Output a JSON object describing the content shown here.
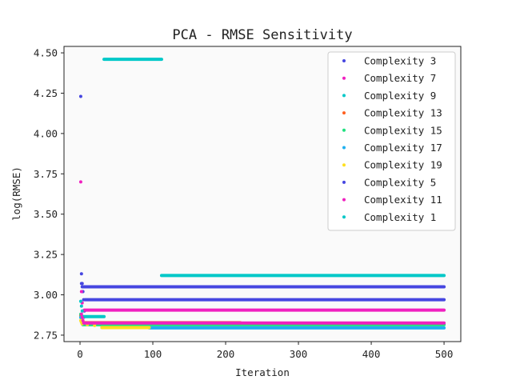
{
  "chart_data": {
    "type": "scatter",
    "title": "PCA - RMSE Sensitivity",
    "xlabel": "Iteration",
    "ylabel": "log(RMSE)",
    "xlim": [
      -22,
      523
    ],
    "ylim": [
      2.71,
      4.54
    ],
    "xticks": [
      0,
      100,
      200,
      300,
      400,
      500
    ],
    "yticks": [
      2.75,
      3.0,
      3.25,
      3.5,
      3.75,
      4.0,
      4.25,
      4.5
    ],
    "ytick_labels": [
      "2.75",
      "3.00",
      "3.25",
      "3.50",
      "3.75",
      "4.00",
      "4.25",
      "4.50"
    ],
    "grid": false,
    "legend_position": "top-right",
    "series": [
      {
        "name": "Complexity 3",
        "color": "#4646e0",
        "points": [
          [
            1,
            4.23
          ],
          [
            2,
            3.13
          ],
          [
            3,
            3.07
          ],
          [
            4,
            3.02
          ],
          [
            5,
            2.97
          ],
          [
            6,
            2.9
          ]
        ],
        "plateau": {
          "from": 7,
          "to": 500,
          "y": 2.97
        }
      },
      {
        "name": "Complexity 7",
        "color": "#f020c0",
        "points": [
          [
            1,
            3.7
          ],
          [
            2,
            3.02
          ],
          [
            3,
            2.95
          ],
          [
            4,
            2.9
          ],
          [
            5,
            2.86
          ]
        ],
        "plateau": {
          "from": 6,
          "to": 500,
          "y": 2.905
        }
      },
      {
        "name": "Complexity 9",
        "color": "#00c8c8",
        "points": [
          [
            1,
            2.96
          ],
          [
            2,
            2.93
          ],
          [
            3,
            2.9
          ]
        ],
        "plateau": {
          "from": 4,
          "to": 33,
          "y": 2.865
        }
      },
      {
        "name": "Complexity 13",
        "color": "#ff6020",
        "points": [
          [
            1,
            2.87
          ],
          [
            2,
            2.85
          ],
          [
            3,
            2.84
          ]
        ],
        "plateau": {
          "from": 4,
          "to": 220,
          "y": 2.827
        }
      },
      {
        "name": "Complexity 15",
        "color": "#20e080",
        "points": [
          [
            1,
            2.88
          ],
          [
            2,
            2.85
          ],
          [
            3,
            2.83
          ]
        ],
        "plateau": {
          "from": 4,
          "to": 500,
          "y": 2.815
        }
      },
      {
        "name": "Complexity 17",
        "color": "#20b0f0",
        "points": [
          [
            1,
            2.86
          ],
          [
            2,
            2.83
          ],
          [
            3,
            2.82
          ]
        ],
        "plateau": {
          "from": 95,
          "to": 500,
          "y": 2.795
        }
      },
      {
        "name": "Complexity 19",
        "color": "#ffe020",
        "points": [
          [
            1,
            2.84
          ],
          [
            2,
            2.83
          ],
          [
            3,
            2.82
          ],
          [
            10,
            2.815
          ],
          [
            20,
            2.81
          ]
        ],
        "plateau": {
          "from": 30,
          "to": 95,
          "y": 2.797
        }
      },
      {
        "name": "Complexity 5",
        "color": "#4646e0",
        "points": [
          [
            2,
            3.07
          ],
          [
            3,
            3.05
          ],
          [
            4,
            3.05
          ]
        ],
        "plateau": {
          "from": 5,
          "to": 500,
          "y": 3.05
        }
      },
      {
        "name": "Complexity 11",
        "color": "#f020c0",
        "points": [
          [
            2,
            2.88
          ],
          [
            3,
            2.86
          ],
          [
            4,
            2.84
          ]
        ],
        "plateau": {
          "from": 5,
          "to": 500,
          "y": 2.825
        }
      },
      {
        "name": "Complexity 1",
        "color": "#00c8c8",
        "points": [],
        "plateau_segments": [
          {
            "from": 33,
            "to": 112,
            "y": 4.46
          },
          {
            "from": 112,
            "to": 500,
            "y": 3.12
          }
        ]
      }
    ]
  }
}
